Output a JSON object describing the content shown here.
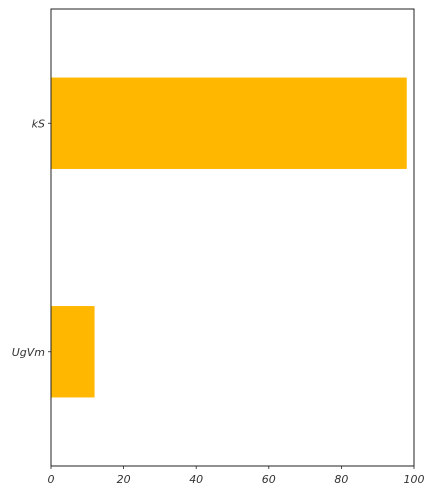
{
  "chart_data": {
    "type": "bar",
    "orientation": "horizontal",
    "categories": [
      "kS",
      "UgVm"
    ],
    "values": [
      98,
      12
    ],
    "xlim": [
      0,
      100
    ],
    "x_ticks": [
      0,
      20,
      40,
      60,
      80,
      100
    ],
    "x_tick_labels": [
      "0",
      "20",
      "40",
      "60",
      "80",
      "100"
    ],
    "bar_color": "#FFB700",
    "grid": false,
    "title": "",
    "xlabel": "",
    "ylabel": ""
  }
}
